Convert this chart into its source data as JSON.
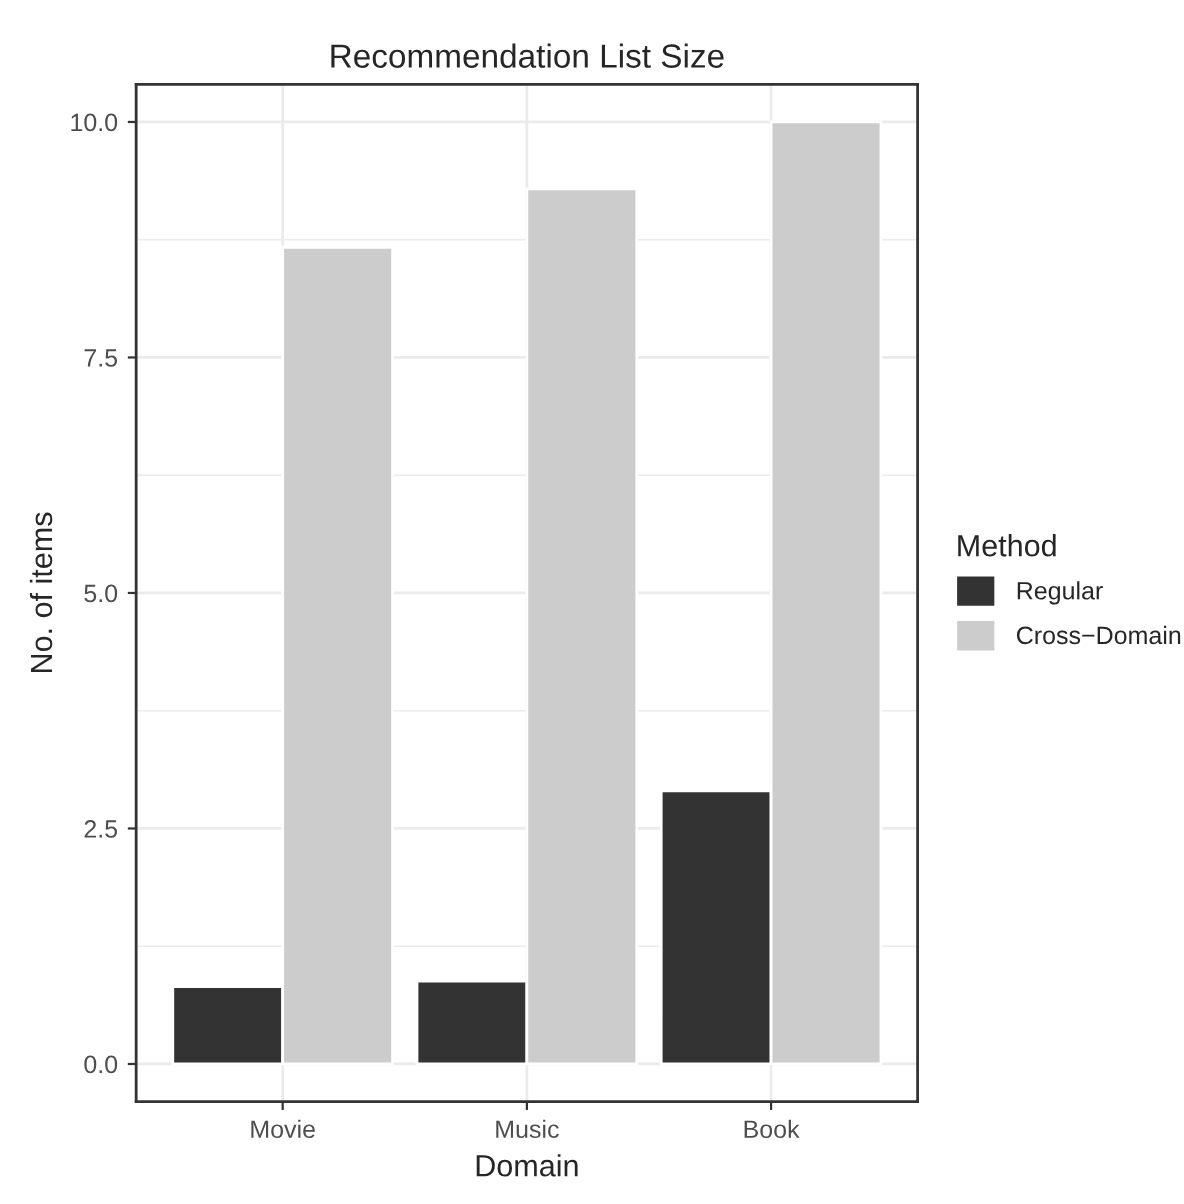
{
  "chart_data": {
    "type": "bar",
    "title": "Recommendation List Size",
    "xlabel": "Domain",
    "ylabel": "No. of items",
    "legend_title": "Method",
    "categories": [
      "Movie",
      "Music",
      "Book"
    ],
    "series": [
      {
        "name": "Regular",
        "color": "#333333",
        "values": [
          0.82,
          0.88,
          2.9
        ]
      },
      {
        "name": "Cross−Domain",
        "color": "#cccccc",
        "values": [
          8.67,
          9.29,
          10.0
        ]
      }
    ],
    "ylim": [
      -0.4,
      10.4
    ],
    "yticks": [
      {
        "value": 0,
        "label": "0.0"
      },
      {
        "value": 2.5,
        "label": "2.5"
      },
      {
        "value": 5,
        "label": "5.0"
      },
      {
        "value": 7.5,
        "label": "7.5"
      },
      {
        "value": 10,
        "label": "10.0"
      }
    ],
    "grid": true,
    "legend": "right"
  }
}
